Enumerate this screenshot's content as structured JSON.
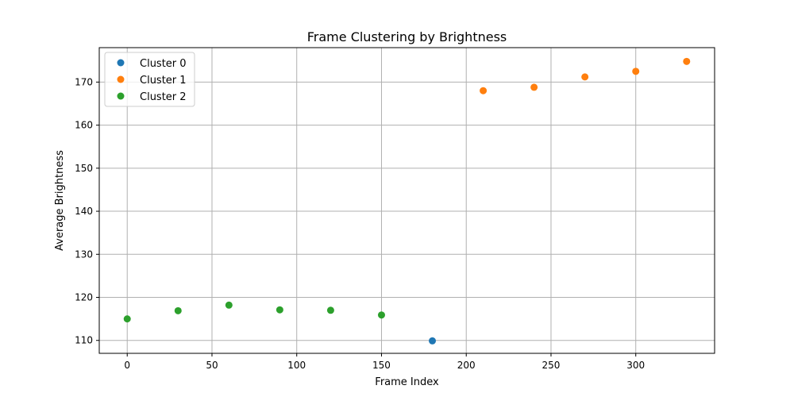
{
  "chart_data": {
    "type": "scatter",
    "title": "Frame Clustering by Brightness",
    "xlabel": "Frame Index",
    "ylabel": "Average Brightness",
    "xlim": [
      -16.5,
      346.5
    ],
    "ylim": [
      107.0,
      178.0
    ],
    "xticks": [
      0,
      50,
      100,
      150,
      200,
      250,
      300
    ],
    "yticks": [
      110,
      120,
      130,
      140,
      150,
      160,
      170
    ],
    "grid": true,
    "legend_position": "top-left",
    "series": [
      {
        "name": "Cluster 0",
        "color": "#1f77b4",
        "points": [
          [
            180,
            109.9
          ]
        ]
      },
      {
        "name": "Cluster 1",
        "color": "#ff7f0e",
        "points": [
          [
            210,
            168.0
          ],
          [
            240,
            168.8
          ],
          [
            270,
            171.2
          ],
          [
            300,
            172.5
          ],
          [
            330,
            174.8
          ]
        ]
      },
      {
        "name": "Cluster 2",
        "color": "#2ca02c",
        "points": [
          [
            0,
            115.0
          ],
          [
            30,
            116.9
          ],
          [
            60,
            118.2
          ],
          [
            90,
            117.1
          ],
          [
            120,
            117.0
          ],
          [
            150,
            115.9
          ]
        ]
      }
    ]
  }
}
